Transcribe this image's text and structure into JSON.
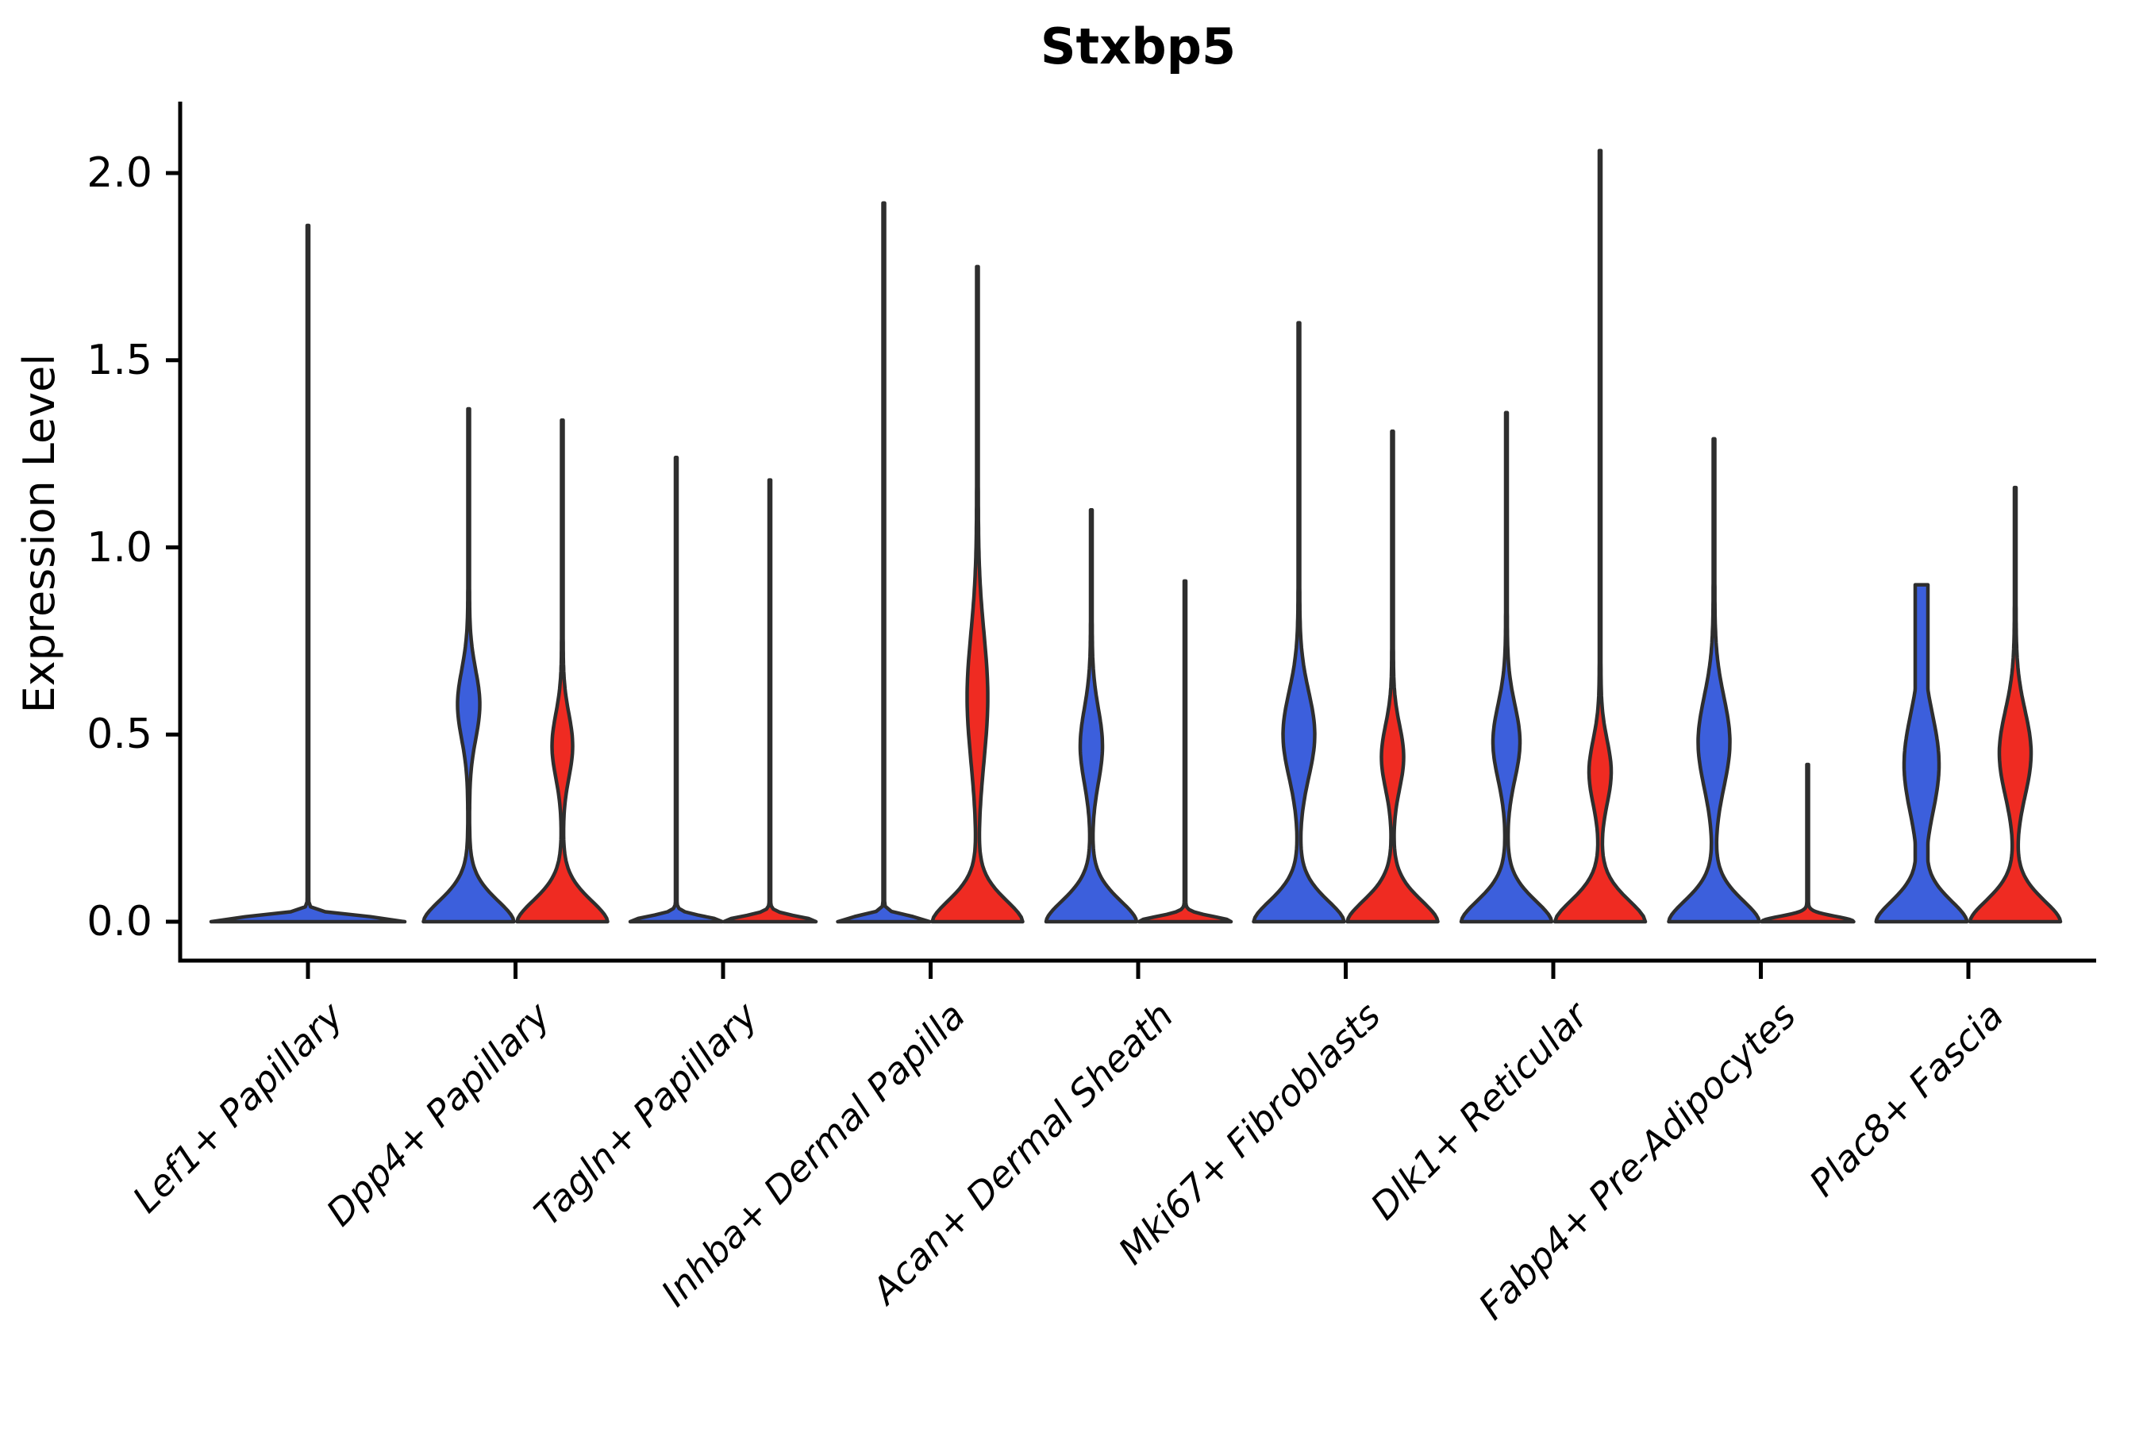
{
  "title": "Stxbp5",
  "ylabel": "Expression Level",
  "colors": {
    "blue": "#3C5FDC",
    "red": "#EF2B22",
    "outline": "#2E2E2E",
    "axis": "#000000"
  },
  "chart_data": {
    "type": "violin",
    "title": "Stxbp5",
    "xlabel": "",
    "ylabel": "Expression Level",
    "ylim": [
      -0.1,
      2.19
    ],
    "yticks": [
      0.0,
      0.5,
      1.0,
      1.5,
      2.0
    ],
    "ytick_labels": [
      "0.0",
      "0.5",
      "1.0",
      "1.5",
      "2.0"
    ],
    "grid": false,
    "legend_position": "none",
    "categories": [
      "Lef1+ Papillary",
      "Dpp4+ Papillary",
      "Tagln+ Papillary",
      "Inhba+ Dermal Papilla",
      "Acan+ Dermal Sheath",
      "Mki67+ Fibroblasts",
      "Dlk1+ Reticular",
      "Fabp4+ Pre-Adipocytes",
      "Plac8+ Fascia"
    ],
    "series": [
      {
        "name": "left-violin",
        "color": "#3C5FDC"
      },
      {
        "name": "right-violin",
        "color": "#EF2B22"
      }
    ],
    "violins": [
      {
        "category_index": 0,
        "category": "Lef1+ Papillary",
        "side": "center",
        "hue": "blue",
        "shape": "flat-spike",
        "max": 1.86,
        "base_hw": 121
      },
      {
        "category_index": 1,
        "category": "Dpp4+ Papillary",
        "side": "left",
        "hue": "blue",
        "shape": "bulged",
        "max": 1.37,
        "bulge_center": 0.58,
        "bulge_hw": 13,
        "bulge_spread": 0.13
      },
      {
        "category_index": 1,
        "category": "Dpp4+ Papillary",
        "side": "right",
        "hue": "red",
        "shape": "bulged",
        "max": 1.34,
        "bulge_center": 0.47,
        "bulge_hw": 12,
        "bulge_spread": 0.12
      },
      {
        "category_index": 2,
        "category": "Tagln+ Papillary",
        "side": "left",
        "hue": "blue",
        "shape": "flat-spike",
        "max": 1.24,
        "base_hw": 57
      },
      {
        "category_index": 2,
        "category": "Tagln+ Papillary",
        "side": "right",
        "hue": "red",
        "shape": "flat-spike",
        "max": 1.18,
        "base_hw": 57
      },
      {
        "category_index": 3,
        "category": "Inhba+ Dermal Papilla",
        "side": "left",
        "hue": "blue",
        "shape": "flat-spike",
        "max": 1.92,
        "base_hw": 57
      },
      {
        "category_index": 3,
        "category": "Inhba+ Dermal Papilla",
        "side": "right",
        "hue": "red",
        "shape": "bulged",
        "max": 1.75,
        "bulge_center": 0.6,
        "bulge_hw": 12,
        "bulge_spread": 0.24
      },
      {
        "category_index": 4,
        "category": "Acan+ Dermal Sheath",
        "side": "left",
        "hue": "blue",
        "shape": "bulged",
        "max": 1.1,
        "bulge_center": 0.47,
        "bulge_hw": 13,
        "bulge_spread": 0.14
      },
      {
        "category_index": 4,
        "category": "Acan+ Dermal Sheath",
        "side": "right",
        "hue": "red",
        "shape": "flat-spike",
        "max": 0.91,
        "base_hw": 57
      },
      {
        "category_index": 5,
        "category": "Mki67+ Fibroblasts",
        "side": "left",
        "hue": "blue",
        "shape": "bulged",
        "max": 1.6,
        "bulge_center": 0.5,
        "bulge_hw": 19,
        "bulge_spread": 0.16
      },
      {
        "category_index": 5,
        "category": "Mki67+ Fibroblasts",
        "side": "right",
        "hue": "red",
        "shape": "bulged",
        "max": 1.31,
        "bulge_center": 0.44,
        "bulge_hw": 13,
        "bulge_spread": 0.12
      },
      {
        "category_index": 6,
        "category": "Dlk1+ Reticular",
        "side": "left",
        "hue": "blue",
        "shape": "bulged",
        "max": 1.36,
        "bulge_center": 0.48,
        "bulge_hw": 16,
        "bulge_spread": 0.14
      },
      {
        "category_index": 6,
        "category": "Dlk1+ Reticular",
        "side": "right",
        "hue": "red",
        "shape": "bulged",
        "max": 2.06,
        "bulge_center": 0.4,
        "bulge_hw": 13,
        "bulge_spread": 0.12
      },
      {
        "category_index": 7,
        "category": "Fabp4+ Pre-Adipocytes",
        "side": "left",
        "hue": "blue",
        "shape": "bulged",
        "max": 1.29,
        "bulge_center": 0.48,
        "bulge_hw": 19,
        "bulge_spread": 0.17
      },
      {
        "category_index": 7,
        "category": "Fabp4+ Pre-Adipocytes",
        "side": "right",
        "hue": "red",
        "shape": "flat-spike",
        "max": 0.42,
        "base_hw": 57
      },
      {
        "category_index": 8,
        "category": "Plac8+ Fascia",
        "side": "left",
        "hue": "blue",
        "shape": "blunt",
        "max": 0.9,
        "bulge_center": 0.42,
        "bulge_hw": 21,
        "bulge_spread": 0.19
      },
      {
        "category_index": 8,
        "category": "Plac8+ Fascia",
        "side": "right",
        "hue": "red",
        "shape": "bulged",
        "max": 1.16,
        "bulge_center": 0.45,
        "bulge_hw": 19,
        "bulge_spread": 0.16
      }
    ]
  }
}
